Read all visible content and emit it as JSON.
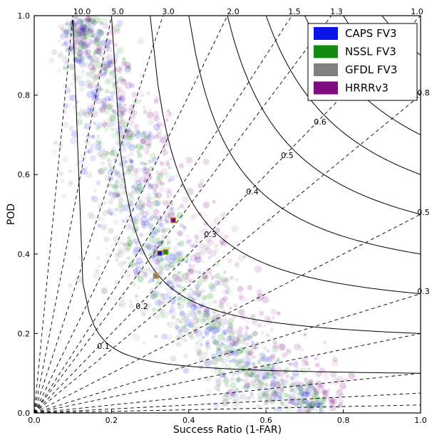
{
  "chart_data": {
    "type": "scatter",
    "subtype": "performance-diagram",
    "title": "",
    "xlabel": "Success Ratio (1-FAR)",
    "ylabel": "POD",
    "xlim": [
      0,
      1
    ],
    "ylim": [
      0,
      1
    ],
    "xticks": [
      "0.0",
      "0.2",
      "0.4",
      "0.6",
      "0.8",
      "1.0"
    ],
    "yticks": [
      "0.0",
      "0.2",
      "0.4",
      "0.6",
      "0.8",
      "1.0"
    ],
    "grid": false,
    "legend_position": "top-right",
    "bias_lines": [
      {
        "value": 10,
        "label": "10.0"
      },
      {
        "value": 5,
        "label": "5.0"
      },
      {
        "value": 3,
        "label": "3.0"
      },
      {
        "value": 2,
        "label": "2.0"
      },
      {
        "value": 1.5,
        "label": "1.5"
      },
      {
        "value": 1.3,
        "label": "1.3"
      },
      {
        "value": 1,
        "label": "1.0"
      },
      {
        "value": 0.8,
        "label": "0.8"
      },
      {
        "value": 0.5,
        "label": "0.5"
      },
      {
        "value": 0.3,
        "label": "0.3"
      },
      {
        "value": 0.2,
        "label": ""
      },
      {
        "value": 0.1,
        "label": ""
      },
      {
        "value": 0.05,
        "label": ""
      },
      {
        "value": 0.02,
        "label": ""
      }
    ],
    "csi_contours": [
      {
        "value": 0.1,
        "label": "0.1"
      },
      {
        "value": 0.2,
        "label": "0.2"
      },
      {
        "value": 0.3,
        "label": "0.3"
      },
      {
        "value": 0.4,
        "label": "0.4"
      },
      {
        "value": 0.5,
        "label": "0.5"
      },
      {
        "value": 0.6,
        "label": "0.6"
      },
      {
        "value": 0.7,
        "label": ""
      },
      {
        "value": 0.8,
        "label": ""
      },
      {
        "value": 0.9,
        "label": ""
      }
    ],
    "series": [
      {
        "name": "CAPS FV3",
        "color": "#0a14e6",
        "centroid": {
          "x": 0.325,
          "y": 0.402
        },
        "cloud_band": [
          {
            "x": 0.1,
            "y": 1.0,
            "sd": 0.03
          },
          {
            "x": 0.15,
            "y": 0.9,
            "sd": 0.04
          },
          {
            "x": 0.2,
            "y": 0.7,
            "sd": 0.05
          },
          {
            "x": 0.25,
            "y": 0.55,
            "sd": 0.05
          },
          {
            "x": 0.32,
            "y": 0.4,
            "sd": 0.055
          },
          {
            "x": 0.4,
            "y": 0.27,
            "sd": 0.05
          },
          {
            "x": 0.5,
            "y": 0.15,
            "sd": 0.045
          },
          {
            "x": 0.6,
            "y": 0.07,
            "sd": 0.04
          },
          {
            "x": 0.75,
            "y": 0.02,
            "sd": 0.02
          }
        ]
      },
      {
        "name": "NSSL FV3",
        "color": "#138a13",
        "centroid": {
          "x": 0.34,
          "y": 0.405
        },
        "cloud_band": [
          {
            "x": 0.11,
            "y": 1.0,
            "sd": 0.03
          },
          {
            "x": 0.16,
            "y": 0.9,
            "sd": 0.035
          },
          {
            "x": 0.22,
            "y": 0.7,
            "sd": 0.045
          },
          {
            "x": 0.27,
            "y": 0.55,
            "sd": 0.045
          },
          {
            "x": 0.34,
            "y": 0.4,
            "sd": 0.05
          },
          {
            "x": 0.42,
            "y": 0.27,
            "sd": 0.045
          },
          {
            "x": 0.52,
            "y": 0.15,
            "sd": 0.04
          },
          {
            "x": 0.62,
            "y": 0.07,
            "sd": 0.035
          },
          {
            "x": 0.75,
            "y": 0.02,
            "sd": 0.02
          }
        ]
      },
      {
        "name": "GFDL FV3",
        "color": "#808080",
        "centroid": {
          "x": 0.315,
          "y": 0.345
        },
        "cloud_band": [
          {
            "x": 0.1,
            "y": 1.0,
            "sd": 0.035
          },
          {
            "x": 0.14,
            "y": 0.85,
            "sd": 0.05
          },
          {
            "x": 0.18,
            "y": 0.65,
            "sd": 0.06
          },
          {
            "x": 0.23,
            "y": 0.5,
            "sd": 0.06
          },
          {
            "x": 0.3,
            "y": 0.35,
            "sd": 0.06
          },
          {
            "x": 0.38,
            "y": 0.23,
            "sd": 0.055
          },
          {
            "x": 0.48,
            "y": 0.13,
            "sd": 0.05
          },
          {
            "x": 0.58,
            "y": 0.06,
            "sd": 0.04
          },
          {
            "x": 0.72,
            "y": 0.02,
            "sd": 0.02
          }
        ]
      },
      {
        "name": "HRRRv3",
        "color": "#7e0b80",
        "centroid": {
          "x": 0.36,
          "y": 0.485
        },
        "cloud_band": [
          {
            "x": 0.11,
            "y": 1.0,
            "sd": 0.03
          },
          {
            "x": 0.18,
            "y": 0.9,
            "sd": 0.04
          },
          {
            "x": 0.25,
            "y": 0.75,
            "sd": 0.05
          },
          {
            "x": 0.31,
            "y": 0.6,
            "sd": 0.055
          },
          {
            "x": 0.38,
            "y": 0.45,
            "sd": 0.06
          },
          {
            "x": 0.46,
            "y": 0.32,
            "sd": 0.06
          },
          {
            "x": 0.56,
            "y": 0.19,
            "sd": 0.055
          },
          {
            "x": 0.68,
            "y": 0.09,
            "sd": 0.05
          },
          {
            "x": 0.8,
            "y": 0.03,
            "sd": 0.03
          }
        ]
      }
    ]
  }
}
